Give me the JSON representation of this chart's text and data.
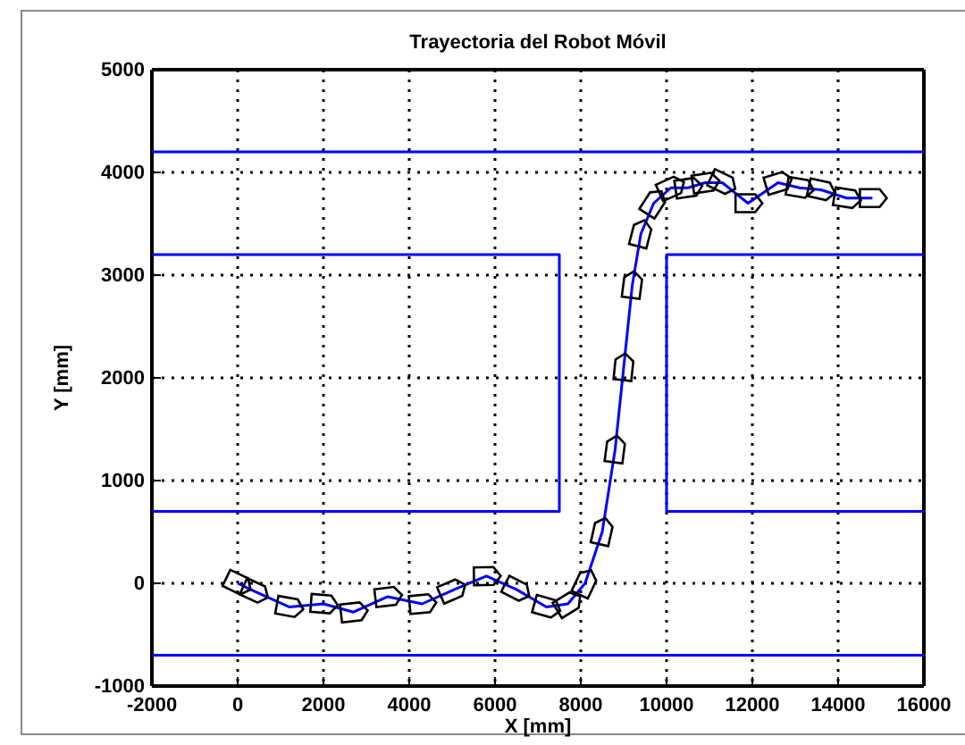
{
  "chart_data": {
    "type": "line",
    "title": "Trayectoria del Robot Móvil",
    "xlabel": "X [mm]",
    "ylabel": "Y [mm]",
    "xlim": [
      -2000,
      16000
    ],
    "xticks": [
      -2000,
      0,
      2000,
      4000,
      6000,
      8000,
      10000,
      12000,
      14000,
      16000
    ],
    "ylim": [
      -1000,
      5000
    ],
    "yticks": [
      -1000,
      0,
      1000,
      2000,
      3000,
      4000,
      5000
    ],
    "grid": true,
    "line_style": "solid",
    "marker": "none",
    "series": [
      {
        "color": "#0000ff",
        "x": [
          0,
          400,
          1200,
          2000,
          2700,
          3500,
          4300,
          5000,
          5800,
          6500,
          7200,
          7700,
          8100,
          8500,
          8800,
          9000,
          9200,
          9400,
          9700,
          10100,
          10500,
          10900,
          11300,
          11900,
          12600,
          13100,
          13600,
          14200,
          14800
        ],
        "values": [
          0,
          -80,
          -230,
          -200,
          -280,
          -130,
          -200,
          -70,
          70,
          -60,
          -230,
          -200,
          0,
          500,
          1300,
          2100,
          2900,
          3400,
          3700,
          3850,
          3850,
          3900,
          3900,
          3700,
          3900,
          3850,
          3830,
          3750,
          3750
        ]
      },
      {
        "color": "#0000ff",
        "x": [
          -2000,
          16000
        ],
        "values": [
          4200,
          4200
        ]
      },
      {
        "color": "#0000ff",
        "x": [
          -2000,
          16000
        ],
        "values": [
          -700,
          -700
        ]
      },
      {
        "color": "#0000ff",
        "x": [
          -2000,
          7500,
          7500,
          -2000
        ],
        "values": [
          3200,
          3200,
          700,
          700
        ]
      },
      {
        "color": "#0000ff",
        "x": [
          16000,
          10000,
          10000,
          16000
        ],
        "values": [
          3200,
          3200,
          700,
          700
        ]
      }
    ]
  }
}
